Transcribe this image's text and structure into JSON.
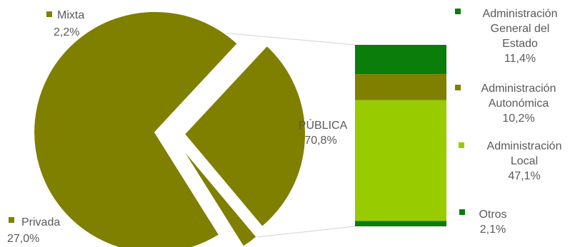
{
  "chart_data": {
    "type": "pie",
    "title": "",
    "slices": [
      {
        "name": "PÚBLICA",
        "value": 70.8,
        "label": "70,8%",
        "color": "#7f7f00"
      },
      {
        "name": "Privada",
        "value": 27.0,
        "label": "27,0%",
        "color": "#7f7f00"
      },
      {
        "name": "Mixta",
        "value": 2.2,
        "label": "2,2%",
        "color": "#7f7f00"
      }
    ],
    "breakdown": {
      "of": "PÚBLICA",
      "type": "stacked-bar",
      "segments": [
        {
          "name_lines": [
            "Administración",
            "General del",
            "Estado"
          ],
          "value": 11.4,
          "label": "11,4%",
          "color": "#0a7d0a"
        },
        {
          "name_lines": [
            "Administración",
            "Autonómica"
          ],
          "value": 10.2,
          "label": "10,2%",
          "color": "#7f7f00"
        },
        {
          "name_lines": [
            "Administración",
            "Local"
          ],
          "value": 47.1,
          "label": "47,1%",
          "color": "#99cc00"
        },
        {
          "name_lines": [
            "Otros"
          ],
          "value": 2.1,
          "label": "2,1%",
          "color": "#0a7d0a"
        }
      ]
    }
  }
}
